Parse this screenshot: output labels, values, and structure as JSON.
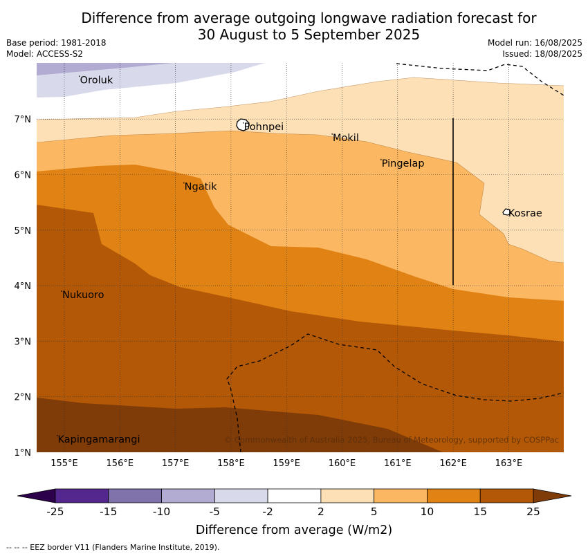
{
  "title_line1": "Difference from average outgoing longwave radiation forecast for",
  "title_line2": "30 August to 5 September 2025",
  "base_period": "Base period: 1981-2018",
  "model": "Model: ACCESS-S2",
  "model_run": "Model run: 16/08/2025",
  "issued": "Issued: 18/08/2025",
  "copyright": "© Commonwealth of Australia 2025, Bureau of Meteorology, supported by COSPPac",
  "footer": "--  --  -- EEZ border V11 (Flanders Marine Institute, 2019).",
  "map": {
    "lon_range": [
      154.5,
      164.0
    ],
    "lat_range": [
      1.0,
      8.0
    ],
    "lon_ticks": [
      155,
      156,
      157,
      158,
      159,
      160,
      161,
      162,
      163
    ],
    "lon_tick_labels": [
      "155°E",
      "156°E",
      "157°E",
      "158°E",
      "159°E",
      "160°E",
      "161°E",
      "162°E",
      "163°E"
    ],
    "lat_ticks": [
      1,
      2,
      3,
      4,
      5,
      6,
      7
    ],
    "lat_tick_labels": [
      "1°N",
      "2°N",
      "3°N",
      "4°N",
      "5°N",
      "6°N",
      "7°N"
    ],
    "places": [
      {
        "name": "Oroluk",
        "lon": 155.27,
        "lat": 7.72
      },
      {
        "name": "Pohnpei",
        "lon": 158.22,
        "lat": 6.88
      },
      {
        "name": "Mokil",
        "lon": 159.82,
        "lat": 6.68
      },
      {
        "name": "Pingelap",
        "lon": 160.7,
        "lat": 6.22
      },
      {
        "name": "Ngatik",
        "lon": 157.15,
        "lat": 5.8
      },
      {
        "name": "Kosrae",
        "lon": 162.98,
        "lat": 5.32
      },
      {
        "name": "Nukuoro",
        "lon": 154.95,
        "lat": 3.85
      },
      {
        "name": "Kapingamarangi",
        "lon": 154.87,
        "lat": 1.25
      }
    ]
  },
  "colorbar": {
    "label": "Difference from average (W/m2)",
    "ticks": [
      "-25",
      "-15",
      "-10",
      "-5",
      "-2",
      "2",
      "5",
      "10",
      "15",
      "25"
    ],
    "colors": [
      "#54278f",
      "#8073ac",
      "#b2abd2",
      "#d8daeb",
      "#ffffff",
      "#fee0b6",
      "#fbb761",
      "#e08214",
      "#b35806"
    ],
    "under_color": "#2d004b",
    "over_color": "#7f3b08"
  }
}
